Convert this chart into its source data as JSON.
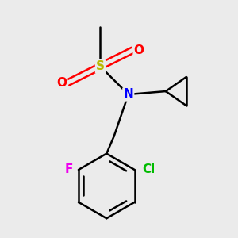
{
  "background_color": "#ebebeb",
  "bond_color": "#000000",
  "atom_colors": {
    "S": "#b8b800",
    "N": "#0000ff",
    "O": "#ff0000",
    "F": "#ee00ee",
    "Cl": "#00bb00",
    "C": "#000000"
  },
  "bond_width": 1.8,
  "font_size": 11,
  "figsize": [
    3.0,
    3.0
  ],
  "dpi": 100
}
